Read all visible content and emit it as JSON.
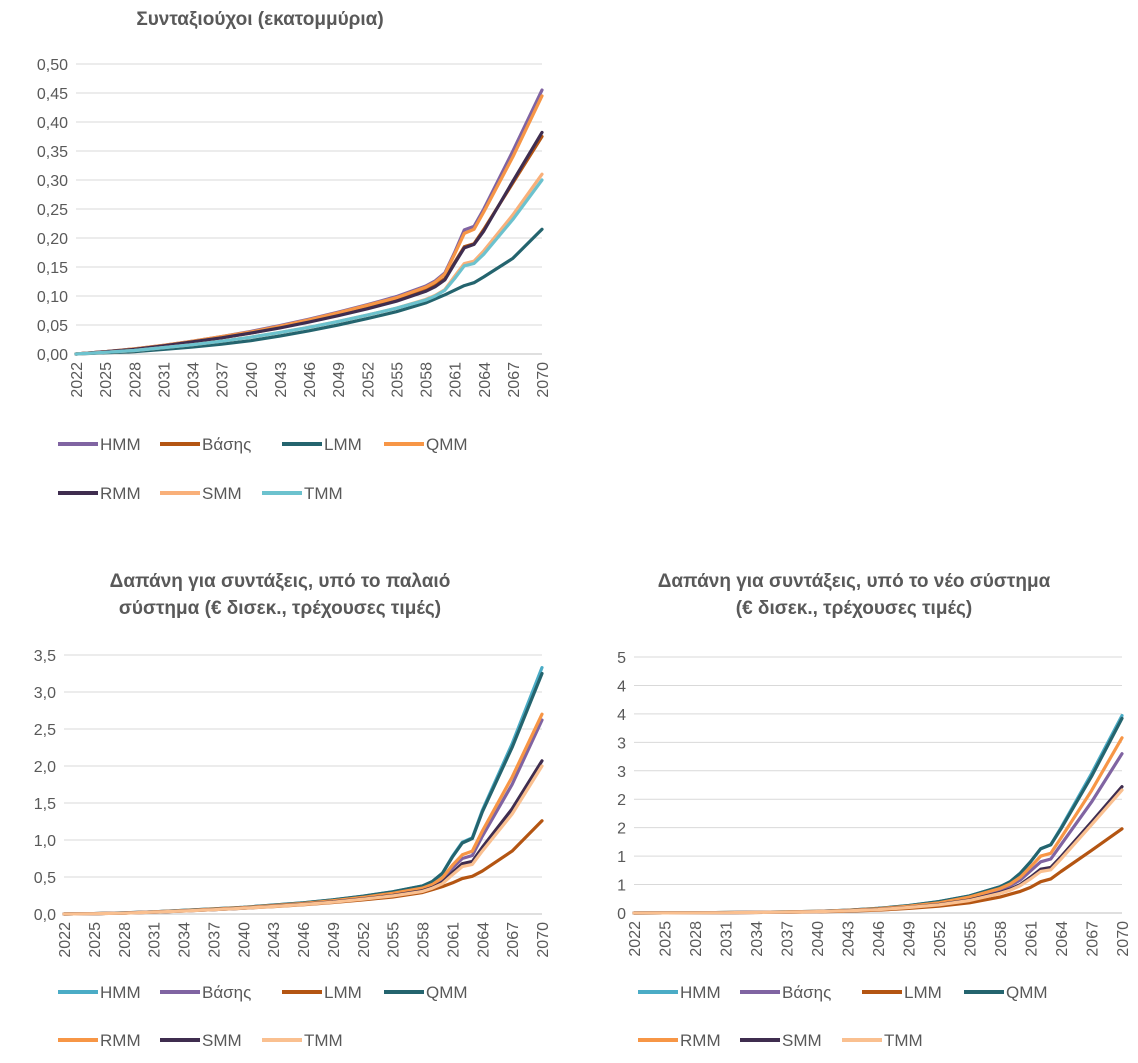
{
  "chart_data": [
    {
      "type": "line",
      "title": "Συνταξιούχοι (εκατομμύρια)",
      "xlabel": "",
      "ylabel": "",
      "x_tick_labels": [
        "2022",
        "2025",
        "2028",
        "2031",
        "2034",
        "2037",
        "2040",
        "2043",
        "2046",
        "2049",
        "2052",
        "2055",
        "2058",
        "2061",
        "2064",
        "2067",
        "2070"
      ],
      "y_tick_labels": [
        "0,00",
        "0,05",
        "0,10",
        "0,15",
        "0,20",
        "0,25",
        "0,30",
        "0,35",
        "0,40",
        "0,45",
        "0,50"
      ],
      "ylim": [
        0,
        0.5
      ],
      "grid": true,
      "legend_position": "bottom",
      "legend_rows": [
        [
          "HMM",
          "Βάσης",
          "LMM",
          "QMM"
        ],
        [
          "RMM",
          "SMM",
          "TMM"
        ]
      ],
      "x": [
        2022,
        2025,
        2028,
        2031,
        2034,
        2037,
        2040,
        2043,
        2046,
        2049,
        2052,
        2055,
        2058,
        2059,
        2060,
        2061,
        2062,
        2063,
        2064,
        2067,
        2070
      ],
      "series": [
        {
          "name": "HMM",
          "color": "#8064A2",
          "values": [
            0,
            0.004,
            0.009,
            0.015,
            0.022,
            0.03,
            0.039,
            0.049,
            0.06,
            0.072,
            0.085,
            0.099,
            0.117,
            0.126,
            0.14,
            0.175,
            0.214,
            0.22,
            0.25,
            0.35,
            0.455
          ]
        },
        {
          "name": "Βάσης",
          "color": "#B45512",
          "values": [
            0,
            0.004,
            0.008,
            0.014,
            0.021,
            0.028,
            0.036,
            0.046,
            0.056,
            0.068,
            0.08,
            0.093,
            0.11,
            0.118,
            0.13,
            0.158,
            0.185,
            0.19,
            0.215,
            0.295,
            0.375
          ]
        },
        {
          "name": "LMM",
          "color": "#24646E",
          "values": [
            0,
            0.002,
            0.004,
            0.008,
            0.012,
            0.017,
            0.023,
            0.031,
            0.04,
            0.05,
            0.061,
            0.073,
            0.088,
            0.095,
            0.102,
            0.11,
            0.118,
            0.123,
            0.133,
            0.165,
            0.215
          ]
        },
        {
          "name": "QMM",
          "color": "#F79646",
          "values": [
            0,
            0.004,
            0.009,
            0.015,
            0.022,
            0.03,
            0.038,
            0.048,
            0.059,
            0.071,
            0.084,
            0.097,
            0.115,
            0.124,
            0.138,
            0.172,
            0.208,
            0.215,
            0.245,
            0.34,
            0.445
          ]
        },
        {
          "name": "RMM",
          "color": "#3F2D4F",
          "values": [
            0,
            0.004,
            0.008,
            0.014,
            0.021,
            0.028,
            0.036,
            0.045,
            0.055,
            0.066,
            0.078,
            0.091,
            0.108,
            0.116,
            0.128,
            0.156,
            0.183,
            0.189,
            0.212,
            0.298,
            0.382
          ]
        },
        {
          "name": "SMM",
          "color": "#F9B07A",
          "values": [
            0,
            0.003,
            0.006,
            0.011,
            0.016,
            0.022,
            0.029,
            0.037,
            0.046,
            0.056,
            0.067,
            0.079,
            0.094,
            0.101,
            0.111,
            0.134,
            0.156,
            0.16,
            0.178,
            0.24,
            0.31
          ]
        },
        {
          "name": "TMM",
          "color": "#6CC2CE",
          "values": [
            0,
            0.003,
            0.006,
            0.011,
            0.016,
            0.022,
            0.029,
            0.037,
            0.046,
            0.056,
            0.067,
            0.079,
            0.093,
            0.1,
            0.11,
            0.13,
            0.152,
            0.156,
            0.172,
            0.232,
            0.3
          ]
        }
      ]
    },
    {
      "type": "line",
      "title": "Δαπάνη για συντάξεις, υπό το παλαιό σύστημα (€ δισεκ., τρέχουσες τιμές)",
      "xlabel": "",
      "ylabel": "",
      "x_tick_labels": [
        "2022",
        "2025",
        "2028",
        "2031",
        "2034",
        "2037",
        "2040",
        "2043",
        "2046",
        "2049",
        "2052",
        "2055",
        "2058",
        "2061",
        "2064",
        "2067",
        "2070"
      ],
      "y_tick_labels": [
        "0,0",
        "0,5",
        "1,0",
        "1,5",
        "2,0",
        "2,5",
        "3,0",
        "3,5"
      ],
      "ylim": [
        0,
        3.5
      ],
      "grid": true,
      "legend_position": "bottom",
      "legend_rows": [
        [
          "HMM",
          "Βάσης",
          "LMM",
          "QMM"
        ],
        [
          "RMM",
          "SMM",
          "TMM"
        ]
      ],
      "x": [
        2022,
        2025,
        2028,
        2031,
        2034,
        2037,
        2040,
        2043,
        2046,
        2049,
        2052,
        2055,
        2058,
        2059,
        2060,
        2061,
        2062,
        2063,
        2064,
        2067,
        2070
      ],
      "series": [
        {
          "name": "HMM",
          "color": "#4BACC6",
          "values": [
            0,
            0.005,
            0.015,
            0.03,
            0.05,
            0.07,
            0.09,
            0.12,
            0.15,
            0.19,
            0.24,
            0.3,
            0.38,
            0.44,
            0.55,
            0.78,
            0.97,
            1.03,
            1.4,
            2.3,
            3.33
          ]
        },
        {
          "name": "Βάσης",
          "color": "#8064A2",
          "values": [
            0,
            0.005,
            0.014,
            0.028,
            0.045,
            0.065,
            0.085,
            0.11,
            0.14,
            0.18,
            0.22,
            0.27,
            0.34,
            0.39,
            0.47,
            0.62,
            0.75,
            0.79,
            1.05,
            1.75,
            2.62
          ]
        },
        {
          "name": "LMM",
          "color": "#B45512",
          "values": [
            0,
            0.004,
            0.012,
            0.024,
            0.04,
            0.058,
            0.077,
            0.1,
            0.125,
            0.155,
            0.19,
            0.23,
            0.29,
            0.33,
            0.37,
            0.42,
            0.48,
            0.51,
            0.58,
            0.85,
            1.26
          ]
        },
        {
          "name": "QMM",
          "color": "#24646E",
          "values": [
            0,
            0.005,
            0.015,
            0.03,
            0.05,
            0.07,
            0.09,
            0.12,
            0.15,
            0.19,
            0.24,
            0.3,
            0.38,
            0.44,
            0.55,
            0.77,
            0.96,
            1.02,
            1.38,
            2.25,
            3.25
          ]
        },
        {
          "name": "RMM",
          "color": "#F79646",
          "values": [
            0,
            0.005,
            0.014,
            0.029,
            0.046,
            0.066,
            0.087,
            0.113,
            0.142,
            0.18,
            0.225,
            0.28,
            0.35,
            0.4,
            0.49,
            0.66,
            0.8,
            0.85,
            1.12,
            1.85,
            2.7
          ]
        },
        {
          "name": "SMM",
          "color": "#3F2D4F",
          "values": [
            0,
            0.004,
            0.013,
            0.026,
            0.042,
            0.06,
            0.08,
            0.105,
            0.132,
            0.165,
            0.205,
            0.25,
            0.315,
            0.36,
            0.43,
            0.56,
            0.68,
            0.71,
            0.9,
            1.42,
            2.07
          ]
        },
        {
          "name": "TMM",
          "color": "#FAC090",
          "values": [
            0,
            0.004,
            0.012,
            0.025,
            0.041,
            0.058,
            0.078,
            0.102,
            0.128,
            0.16,
            0.2,
            0.245,
            0.305,
            0.35,
            0.41,
            0.53,
            0.64,
            0.67,
            0.85,
            1.35,
            2.0
          ]
        }
      ]
    },
    {
      "type": "line",
      "title": "Δαπάνη για συντάξεις, υπό το νέο σύστημα (€ δισεκ., τρέχουσες τιμές)",
      "xlabel": "",
      "ylabel": "",
      "x_tick_labels": [
        "2022",
        "2025",
        "2028",
        "2031",
        "2034",
        "2037",
        "2040",
        "2043",
        "2046",
        "2049",
        "2052",
        "2055",
        "2058",
        "2061",
        "2064",
        "2067",
        "2070"
      ],
      "y_tick_labels": [
        "0",
        "1",
        "1",
        "2",
        "2",
        "3",
        "3",
        "4",
        "4",
        "5"
      ],
      "ylim": [
        0,
        4.5
      ],
      "grid": true,
      "legend_position": "bottom",
      "legend_rows": [
        [
          "HMM",
          "Βάσης",
          "LMM",
          "QMM"
        ],
        [
          "RMM",
          "SMM",
          "TMM"
        ]
      ],
      "x": [
        2022,
        2025,
        2028,
        2031,
        2034,
        2037,
        2040,
        2043,
        2046,
        2049,
        2052,
        2055,
        2058,
        2059,
        2060,
        2061,
        2062,
        2063,
        2064,
        2067,
        2070
      ],
      "series": [
        {
          "name": "HMM",
          "color": "#4BACC6",
          "values": [
            0,
            0.002,
            0.004,
            0.008,
            0.012,
            0.02,
            0.03,
            0.05,
            0.08,
            0.13,
            0.2,
            0.3,
            0.46,
            0.55,
            0.7,
            0.9,
            1.13,
            1.2,
            1.5,
            2.45,
            3.47
          ]
        },
        {
          "name": "Βάσης",
          "color": "#8064A2",
          "values": [
            0,
            0.002,
            0.004,
            0.007,
            0.011,
            0.018,
            0.027,
            0.045,
            0.07,
            0.11,
            0.17,
            0.26,
            0.4,
            0.48,
            0.58,
            0.74,
            0.9,
            0.95,
            1.2,
            1.95,
            2.8
          ]
        },
        {
          "name": "LMM",
          "color": "#B45512",
          "values": [
            0,
            0.002,
            0.003,
            0.005,
            0.008,
            0.013,
            0.02,
            0.032,
            0.05,
            0.08,
            0.12,
            0.18,
            0.28,
            0.33,
            0.38,
            0.45,
            0.55,
            0.6,
            0.73,
            1.1,
            1.48
          ]
        },
        {
          "name": "QMM",
          "color": "#24646E",
          "values": [
            0,
            0.002,
            0.004,
            0.008,
            0.012,
            0.02,
            0.03,
            0.05,
            0.08,
            0.13,
            0.2,
            0.3,
            0.46,
            0.55,
            0.7,
            0.9,
            1.13,
            1.2,
            1.48,
            2.4,
            3.42
          ]
        },
        {
          "name": "RMM",
          "color": "#F79646",
          "values": [
            0,
            0.002,
            0.004,
            0.008,
            0.012,
            0.019,
            0.029,
            0.048,
            0.075,
            0.12,
            0.18,
            0.28,
            0.43,
            0.51,
            0.63,
            0.81,
            1.0,
            1.05,
            1.32,
            2.15,
            3.08
          ]
        },
        {
          "name": "SMM",
          "color": "#3F2D4F",
          "values": [
            0,
            0.002,
            0.004,
            0.007,
            0.01,
            0.016,
            0.025,
            0.04,
            0.063,
            0.1,
            0.15,
            0.23,
            0.36,
            0.42,
            0.5,
            0.63,
            0.77,
            0.8,
            0.99,
            1.6,
            2.22
          ]
        },
        {
          "name": "TMM",
          "color": "#FAC090",
          "values": [
            0,
            0.002,
            0.003,
            0.006,
            0.01,
            0.016,
            0.024,
            0.039,
            0.06,
            0.096,
            0.145,
            0.22,
            0.345,
            0.4,
            0.48,
            0.6,
            0.73,
            0.76,
            0.95,
            1.55,
            2.16
          ]
        }
      ]
    }
  ]
}
